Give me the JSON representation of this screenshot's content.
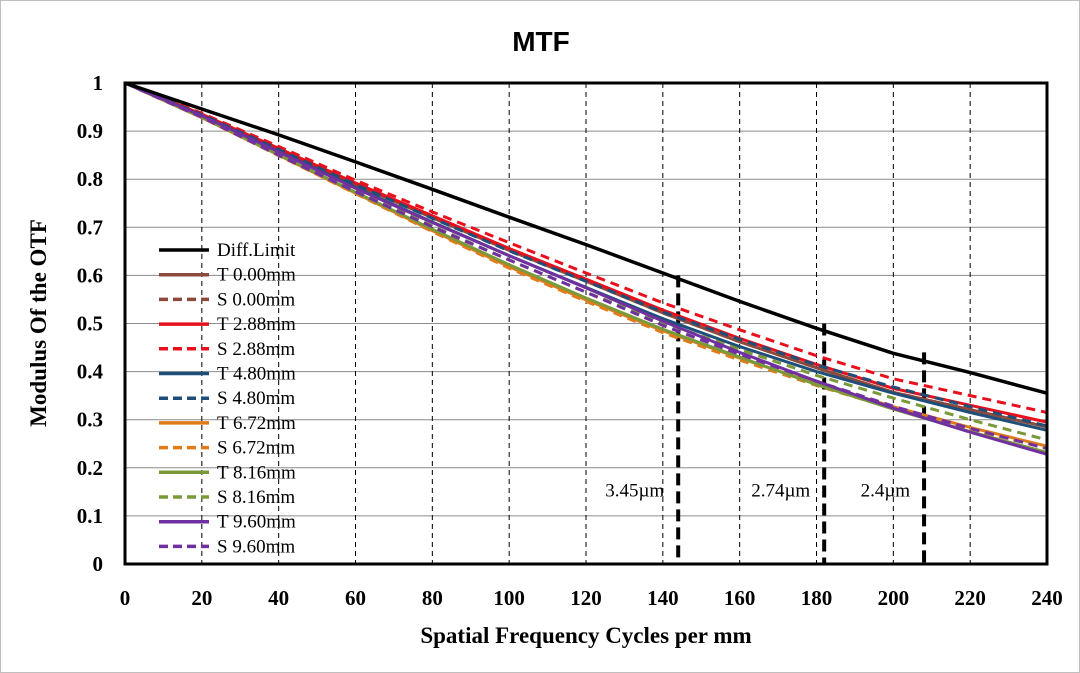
{
  "chart_data": {
    "type": "line",
    "title": "MTF",
    "xlabel": "Spatial Frequency Cycles per mm",
    "ylabel": "Modulus Of the OTF",
    "xlim": [
      0,
      240
    ],
    "ylim": [
      0,
      1
    ],
    "x_ticks": [
      0,
      20,
      40,
      60,
      80,
      100,
      120,
      140,
      160,
      180,
      200,
      220,
      240
    ],
    "y_ticks": [
      0,
      0.1,
      0.2,
      0.3,
      0.4,
      0.5,
      0.6,
      0.7,
      0.8,
      0.9,
      1
    ],
    "x_tick_labels": [
      "0",
      "20",
      "40",
      "60",
      "80",
      "100",
      "120",
      "140",
      "160",
      "180",
      "200",
      "220",
      "240"
    ],
    "y_tick_labels": [
      "0",
      "0.1",
      "0.2",
      "0.3",
      "0.4",
      "0.5",
      "0.6",
      "0.7",
      "0.8",
      "0.9",
      "1"
    ],
    "grid": {
      "horizontal": "solid",
      "vertical": "dashed"
    },
    "legend_position": "lower-left",
    "x": [
      0,
      20,
      40,
      60,
      80,
      100,
      120,
      140,
      160,
      180,
      200,
      220,
      240
    ],
    "series": [
      {
        "name": "Diff.Limit",
        "color": "#000000",
        "dash": "solid",
        "values": [
          1,
          0.946,
          0.892,
          0.836,
          0.779,
          0.721,
          0.664,
          0.605,
          0.546,
          0.49,
          0.438,
          0.398,
          0.355
        ]
      },
      {
        "name": "T 0.00mm",
        "color": "#8b4a3c",
        "dash": "solid",
        "values": [
          1,
          0.935,
          0.863,
          0.789,
          0.72,
          0.652,
          0.588,
          0.522,
          0.462,
          0.408,
          0.357,
          0.321,
          0.285
        ]
      },
      {
        "name": "S 0.00mm",
        "color": "#8b4a3c",
        "dash": "dashed",
        "values": [
          1,
          0.935,
          0.863,
          0.789,
          0.72,
          0.652,
          0.588,
          0.522,
          0.462,
          0.408,
          0.357,
          0.321,
          0.285
        ]
      },
      {
        "name": "T 2.88mm",
        "color": "#e8101c",
        "dash": "solid",
        "values": [
          1,
          0.935,
          0.864,
          0.792,
          0.724,
          0.656,
          0.592,
          0.528,
          0.469,
          0.415,
          0.365,
          0.33,
          0.295
        ]
      },
      {
        "name": "S 2.88mm",
        "color": "#e8101c",
        "dash": "dashed",
        "values": [
          1,
          0.937,
          0.868,
          0.798,
          0.732,
          0.668,
          0.605,
          0.543,
          0.487,
          0.433,
          0.385,
          0.35,
          0.315
        ]
      },
      {
        "name": "T 4.80mm",
        "color": "#1f4e79",
        "dash": "solid",
        "values": [
          1,
          0.932,
          0.858,
          0.783,
          0.711,
          0.641,
          0.575,
          0.51,
          0.452,
          0.4,
          0.355,
          0.315,
          0.278
        ]
      },
      {
        "name": "S 4.80mm",
        "color": "#1f4e79",
        "dash": "dashed",
        "values": [
          1,
          0.934,
          0.862,
          0.789,
          0.719,
          0.651,
          0.588,
          0.524,
          0.467,
          0.414,
          0.368,
          0.327,
          0.287
        ]
      },
      {
        "name": "T 6.72mm",
        "color": "#e07b1a",
        "dash": "solid",
        "values": [
          1,
          0.928,
          0.85,
          0.771,
          0.693,
          0.618,
          0.549,
          0.485,
          0.428,
          0.375,
          0.327,
          0.284,
          0.245
        ]
      },
      {
        "name": "S 6.72mm",
        "color": "#e07b1a",
        "dash": "dashed",
        "values": [
          1,
          0.928,
          0.849,
          0.77,
          0.691,
          0.615,
          0.546,
          0.481,
          0.424,
          0.371,
          0.323,
          0.28,
          0.241
        ]
      },
      {
        "name": "T 8.16mm",
        "color": "#7a9a3a",
        "dash": "solid",
        "values": [
          1,
          0.929,
          0.851,
          0.773,
          0.696,
          0.622,
          0.553,
          0.488,
          0.43,
          0.373,
          0.322,
          0.275,
          0.232
        ]
      },
      {
        "name": "S 8.16mm",
        "color": "#7a9a3a",
        "dash": "dashed",
        "values": [
          1,
          0.93,
          0.854,
          0.777,
          0.703,
          0.632,
          0.565,
          0.502,
          0.446,
          0.392,
          0.345,
          0.3,
          0.258
        ]
      },
      {
        "name": "T 9.60mm",
        "color": "#7030a0",
        "dash": "solid",
        "values": [
          1,
          0.932,
          0.857,
          0.781,
          0.71,
          0.641,
          0.574,
          0.505,
          0.44,
          0.38,
          0.324,
          0.274,
          0.228
        ]
      },
      {
        "name": "S 9.60mm",
        "color": "#7030a0",
        "dash": "dashed",
        "values": [
          1,
          0.929,
          0.85,
          0.774,
          0.701,
          0.632,
          0.565,
          0.496,
          0.436,
          0.38,
          0.328,
          0.282,
          0.24
        ]
      }
    ],
    "annotations": [
      {
        "label": "3.45µm",
        "x": 144,
        "y_top": 0.6
      },
      {
        "label": "2.74µm",
        "x": 182,
        "y_top": 0.5
      },
      {
        "label": "2.4µm",
        "x": 208,
        "y_top": 0.44
      }
    ]
  }
}
